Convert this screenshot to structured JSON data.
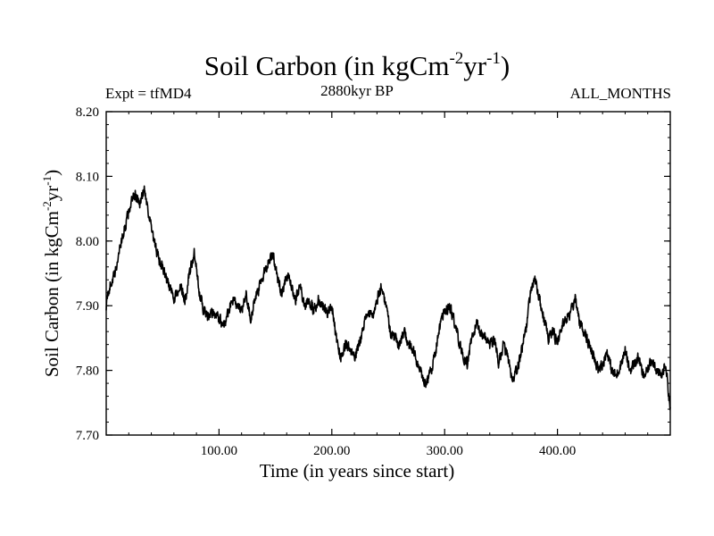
{
  "header": {
    "title_main": "Soil Carbon (in kgCm",
    "title_exp1": "-2",
    "title_mid": "yr",
    "title_exp2": "-1",
    "title_end": ")",
    "experiment": "Expt = tfMD4",
    "period": "2880kyr BP",
    "months": "ALL_MONTHS"
  },
  "axes": {
    "xlabel": "Time (in years since start)",
    "ylabel_main": "Soil Carbon (in kgCm",
    "ylabel_exp1": "-2",
    "ylabel_mid": "yr",
    "ylabel_exp2": "-1",
    "ylabel_end": ")"
  },
  "chart_data": {
    "type": "line",
    "title": "Soil Carbon (in kgCm-2yr-1)",
    "xlabel": "Time (in years since start)",
    "ylabel": "Soil Carbon (in kgCm-2yr-1)",
    "xlim": [
      0,
      500
    ],
    "ylim": [
      7.7,
      8.2
    ],
    "x_ticks": [
      100,
      200,
      300,
      400
    ],
    "x_tick_labels": [
      "100.00",
      "200.00",
      "300.00",
      "400.00"
    ],
    "y_ticks": [
      7.7,
      7.8,
      7.9,
      8.0,
      8.1,
      8.2
    ],
    "y_tick_labels": [
      "7.70",
      "7.80",
      "7.90",
      "8.00",
      "8.10",
      "8.20"
    ],
    "color": "#000000",
    "series": [
      {
        "name": "Soil Carbon",
        "noise_amplitude": 0.012,
        "x": [
          0,
          3,
          8,
          12,
          18,
          22,
          26,
          30,
          34,
          38,
          42,
          47,
          52,
          56,
          60,
          65,
          70,
          74,
          78,
          82,
          85,
          90,
          95,
          100,
          104,
          108,
          112,
          116,
          120,
          124,
          128,
          132,
          136,
          140,
          144,
          148,
          152,
          156,
          160,
          164,
          168,
          172,
          176,
          180,
          184,
          188,
          192,
          196,
          200,
          204,
          208,
          212,
          216,
          220,
          224,
          228,
          232,
          236,
          240,
          244,
          248,
          252,
          256,
          260,
          264,
          268,
          272,
          276,
          280,
          284,
          288,
          292,
          296,
          300,
          304,
          308,
          312,
          316,
          320,
          324,
          328,
          332,
          336,
          340,
          344,
          348,
          352,
          356,
          360,
          364,
          368,
          372,
          376,
          380,
          384,
          388,
          392,
          396,
          400,
          404,
          408,
          412,
          416,
          420,
          424,
          428,
          432,
          436,
          440,
          444,
          448,
          452,
          456,
          460,
          464,
          468,
          472,
          476,
          480,
          484,
          488,
          492,
          496,
          500
        ],
        "y": [
          7.9,
          7.93,
          7.95,
          7.99,
          8.03,
          8.06,
          8.07,
          8.06,
          8.08,
          8.04,
          8.0,
          7.97,
          7.95,
          7.93,
          7.91,
          7.93,
          7.91,
          7.95,
          7.98,
          7.93,
          7.9,
          7.88,
          7.89,
          7.88,
          7.87,
          7.89,
          7.91,
          7.9,
          7.89,
          7.92,
          7.88,
          7.91,
          7.93,
          7.95,
          7.97,
          7.98,
          7.94,
          7.92,
          7.95,
          7.93,
          7.91,
          7.93,
          7.9,
          7.91,
          7.89,
          7.91,
          7.9,
          7.89,
          7.9,
          7.85,
          7.82,
          7.84,
          7.83,
          7.82,
          7.84,
          7.87,
          7.89,
          7.88,
          7.91,
          7.93,
          7.9,
          7.86,
          7.85,
          7.84,
          7.86,
          7.84,
          7.83,
          7.81,
          7.79,
          7.78,
          7.8,
          7.83,
          7.87,
          7.89,
          7.9,
          7.88,
          7.85,
          7.82,
          7.81,
          7.85,
          7.87,
          7.86,
          7.85,
          7.84,
          7.85,
          7.81,
          7.84,
          7.82,
          7.78,
          7.8,
          7.83,
          7.86,
          7.92,
          7.94,
          7.91,
          7.88,
          7.85,
          7.86,
          7.84,
          7.87,
          7.88,
          7.89,
          7.91,
          7.87,
          7.86,
          7.84,
          7.82,
          7.8,
          7.81,
          7.83,
          7.8,
          7.79,
          7.81,
          7.83,
          7.8,
          7.81,
          7.82,
          7.79,
          7.8,
          7.82,
          7.8,
          7.79,
          7.81,
          7.74
        ]
      }
    ]
  }
}
